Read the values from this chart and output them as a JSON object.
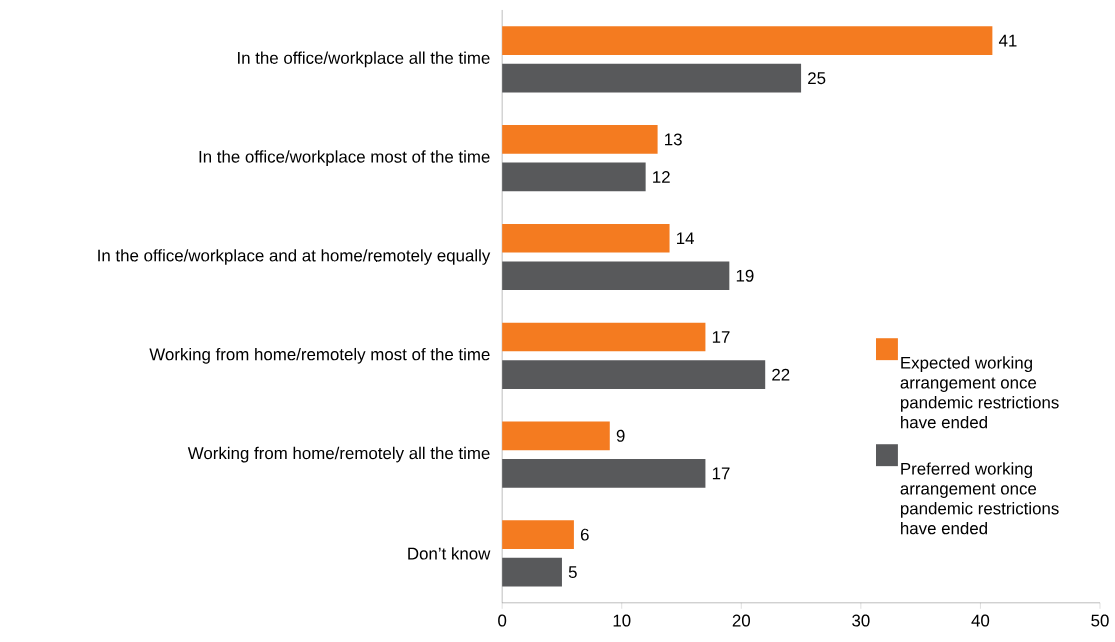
{
  "chart_data": {
    "type": "bar",
    "orientation": "horizontal",
    "categories": [
      "In the office/workplace all the time",
      "In the office/workplace most of the time",
      "In the office/workplace and at home/remotely equally",
      "Working from home/remotely most of the time",
      "Working from home/remotely all the time",
      "Don’t know"
    ],
    "series": [
      {
        "name": "Expected working arrangement once pandemic restrictions have ended",
        "color": "#f47b20",
        "values": [
          41,
          13,
          14,
          17,
          9,
          6
        ]
      },
      {
        "name": "Preferred working arrangement once pandemic restrictions have ended",
        "color": "#58595b",
        "values": [
          25,
          12,
          19,
          22,
          17,
          5
        ]
      }
    ],
    "xlim": [
      0,
      50
    ],
    "xticks": [
      0,
      10,
      20,
      30,
      40,
      50
    ],
    "data_labels": true,
    "grid": false,
    "legend": "right"
  }
}
